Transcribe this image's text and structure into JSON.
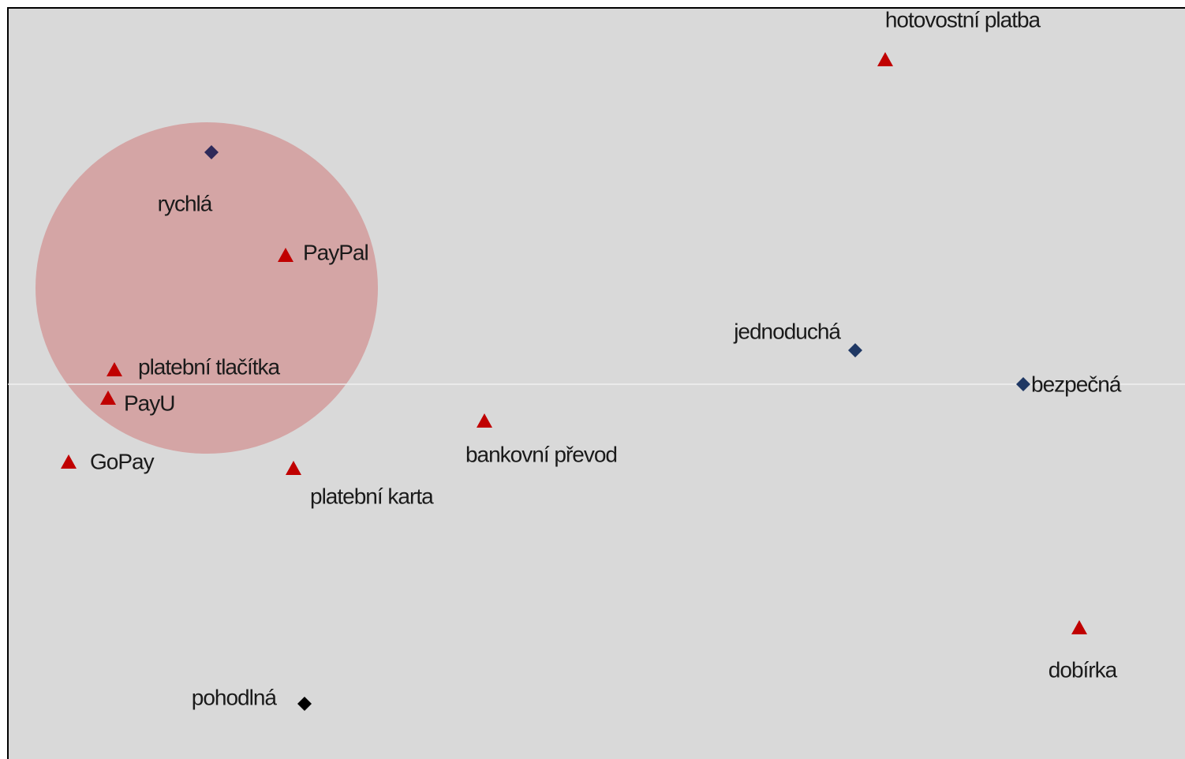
{
  "nodes": [
    {
      "label": "hotovostní platba",
      "shape": "triangle",
      "color": "#c00000"
    },
    {
      "label": "rychlá",
      "shape": "diamond",
      "color": "#2e2a5a"
    },
    {
      "label": "PayPal",
      "shape": "triangle",
      "color": "#c00000"
    },
    {
      "label": "jednoduchá",
      "shape": "diamond",
      "color": "#1f3864"
    },
    {
      "label": "bezpečná",
      "shape": "diamond",
      "color": "#1f3864"
    },
    {
      "label": "platební tlačítka",
      "shape": "triangle",
      "color": "#c00000"
    },
    {
      "label": "PayU",
      "shape": "triangle",
      "color": "#c00000"
    },
    {
      "label": "GoPay",
      "shape": "triangle",
      "color": "#c00000"
    },
    {
      "label": "platební karta",
      "shape": "triangle",
      "color": "#c00000"
    },
    {
      "label": "bankovní převod",
      "shape": "triangle",
      "color": "#c00000"
    },
    {
      "label": "dobírka",
      "shape": "triangle",
      "color": "#c00000"
    },
    {
      "label": "pohodlná",
      "shape": "diamond",
      "color": "#000000"
    }
  ]
}
